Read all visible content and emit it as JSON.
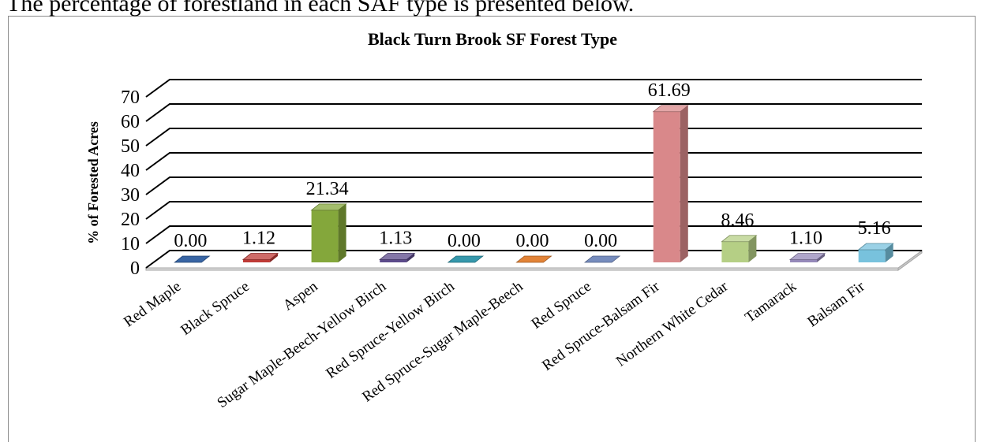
{
  "page": {
    "intro_text": "The percentage of forestland in each SAF type is presented below."
  },
  "chart_data": {
    "type": "bar",
    "three_d": true,
    "title": "Black Turn Brook SF Forest Type",
    "xlabel": "",
    "ylabel": "% of Forested Acres",
    "ylim": [
      0,
      70
    ],
    "yticks": [
      0,
      10,
      20,
      30,
      40,
      50,
      60,
      70
    ],
    "grid": true,
    "legend": "none",
    "categories": [
      "Red Maple",
      "Black Spruce",
      "Aspen",
      "Sugar Maple-Beech-Yellow Birch",
      "Red Spruce-Yellow Birch",
      "Red Spruce-Sugar Maple-Beech",
      "Red Spruce",
      "Red Spruce-Balsam Fir",
      "Northern White Cedar",
      "Tamarack",
      "Balsam Fir"
    ],
    "values": [
      0.0,
      1.12,
      21.34,
      1.13,
      0.0,
      0.0,
      0.0,
      61.69,
      8.46,
      1.1,
      5.16
    ],
    "colors": [
      "#2e5d9f",
      "#be3a36",
      "#84a73b",
      "#5b4a8a",
      "#2b93a8",
      "#e07c2c",
      "#6f86b9",
      "#d9888a",
      "#b5cf85",
      "#9488b8",
      "#78c2dd"
    ]
  }
}
